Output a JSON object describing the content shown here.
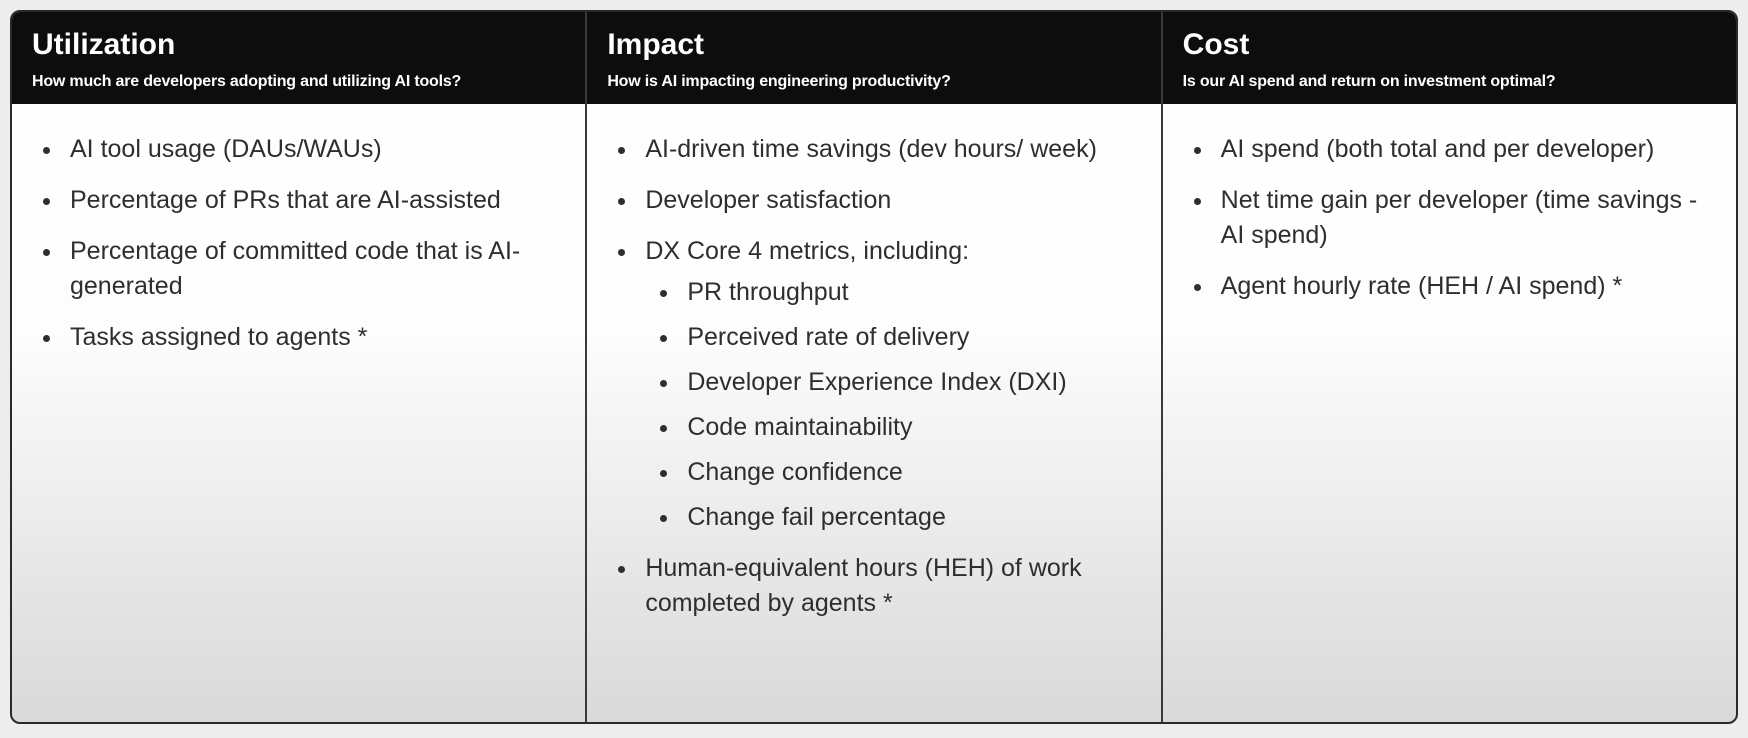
{
  "columns": [
    {
      "title": "Utilization",
      "subtitle": "How much are developers adopting and utilizing AI tools?",
      "items": [
        "AI tool usage (DAUs/WAUs)",
        "Percentage of PRs that are AI-assisted",
        "Percentage of committed code that is AI-generated",
        "Tasks assigned to agents *"
      ]
    },
    {
      "title": "Impact",
      "subtitle": "How is AI impacting engineering productivity?",
      "items": [
        "AI-driven time savings (dev hours/ week)",
        "Developer satisfaction",
        "DX Core 4 metrics, including:",
        "Human-equivalent hours (HEH) of work completed by agents *"
      ],
      "subitems": [
        "PR throughput",
        "Perceived rate of delivery",
        "Developer Experience Index (DXI)",
        "Code maintainability",
        "Change confidence",
        "Change fail percentage"
      ]
    },
    {
      "title": "Cost",
      "subtitle": "Is our AI spend and return on investment optimal?",
      "items": [
        "AI spend (both total and per developer)",
        "Net time gain per developer (time savings - AI spend)",
        "Agent hourly rate (HEH / AI spend) *"
      ]
    }
  ]
}
